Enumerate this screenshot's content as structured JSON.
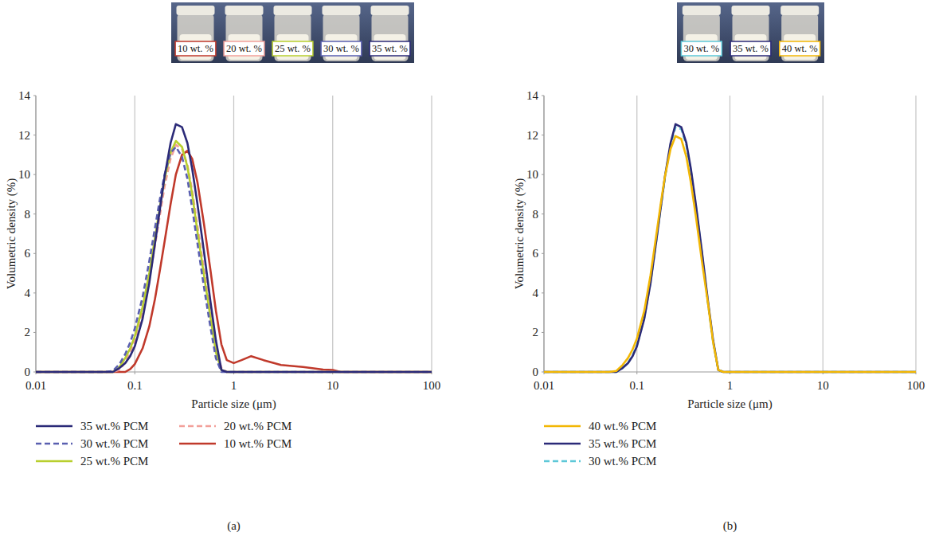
{
  "chart_data": [
    {
      "type": "line",
      "panel_label": "(a)",
      "x_label": "Particle size (μm)",
      "y_label": "Volumetric density (%)",
      "log": "x",
      "grid": true,
      "legend": "bottom",
      "xlim": [
        0.01,
        100
      ],
      "xticks": [
        0.01,
        0.1,
        1,
        10,
        100
      ],
      "ylim": [
        0,
        14
      ],
      "yticks": [
        0,
        2,
        4,
        6,
        8,
        10,
        12,
        14
      ],
      "x": [
        0.01,
        0.05,
        0.06,
        0.07,
        0.08,
        0.09,
        0.1,
        0.12,
        0.14,
        0.16,
        0.18,
        0.2,
        0.23,
        0.26,
        0.3,
        0.34,
        0.38,
        0.43,
        0.5,
        0.58,
        0.66,
        0.75,
        0.85,
        1,
        1.2,
        1.5,
        2,
        3,
        5,
        8,
        10,
        12,
        100
      ],
      "series": [
        {
          "name": "35 wt.% PCM",
          "color": "#2b2a78",
          "line_style": "solid",
          "values": [
            0,
            0,
            0,
            0.2,
            0.44,
            0.81,
            1.3,
            2.7,
            4.5,
            6.5,
            8.3,
            9.9,
            11.6,
            12.55,
            12.4,
            11.6,
            10.3,
            8.5,
            6.1,
            3.6,
            1.6,
            0.1,
            0,
            0,
            0,
            0,
            0,
            0,
            0,
            0,
            0,
            0,
            0
          ]
        },
        {
          "name": "30 wt.% PCM",
          "color": "#5a5fb0",
          "line_style": "dashed",
          "values": [
            0,
            0,
            0.05,
            0.4,
            0.9,
            1.5,
            2.2,
            3.8,
            5.6,
            7.3,
            8.8,
            10,
            11.1,
            11.4,
            10.9,
            9.8,
            8.3,
            6.5,
            4.3,
            2.3,
            0.7,
            0,
            0,
            0,
            0,
            0,
            0,
            0,
            0,
            0,
            0,
            0,
            0
          ]
        },
        {
          "name": "25 wt.% PCM",
          "color": "#b8cf2e",
          "line_style": "solid",
          "values": [
            0,
            0,
            0,
            0.25,
            0.7,
            1.2,
            1.8,
            3.3,
            5,
            6.8,
            8.4,
            9.8,
            11.1,
            11.7,
            11.4,
            10.4,
            9,
            7.1,
            4.9,
            2.8,
            1,
            0.1,
            0,
            0,
            0,
            0,
            0,
            0,
            0,
            0,
            0,
            0,
            0
          ]
        },
        {
          "name": "20 wt.% PCM",
          "color": "#f2a09a",
          "line_style": "dashed",
          "values": [
            0,
            0,
            0,
            0.1,
            0.5,
            1,
            1.6,
            3,
            4.7,
            6.4,
            8,
            9.4,
            10.8,
            11.5,
            11.3,
            10.5,
            9.2,
            7.4,
            5.2,
            3.1,
            1.3,
            0.2,
            0,
            0,
            0,
            0,
            0,
            0,
            0,
            0,
            0,
            0,
            0
          ]
        },
        {
          "name": "10 wt.% PCM",
          "color": "#c0392b",
          "line_style": "solid",
          "values": [
            0,
            0,
            0,
            0,
            0,
            0.15,
            0.4,
            1.2,
            2.3,
            3.7,
            5.2,
            6.6,
            8.5,
            10,
            11,
            11.2,
            10.8,
            9.6,
            7.5,
            5.2,
            3.1,
            1.4,
            0.6,
            0.45,
            0.6,
            0.8,
            0.6,
            0.35,
            0.25,
            0.12,
            0.1,
            0,
            0
          ]
        }
      ],
      "annotations": [
        {
          "text": "10 wt. %",
          "color": "#c0392b"
        },
        {
          "text": "20 wt. %",
          "color": "#f2a09a"
        },
        {
          "text": "25 wt. %",
          "color": "#b8cf2e"
        },
        {
          "text": "30 wt. %",
          "color": "#5a5fb0"
        },
        {
          "text": "35 wt. %",
          "color": "#2b2a78"
        }
      ]
    },
    {
      "type": "line",
      "panel_label": "(b)",
      "x_label": "Particle size (μm)",
      "y_label": "Volumetric density (%)",
      "log": "x",
      "grid": true,
      "legend": "bottom",
      "xlim": [
        0.01,
        100
      ],
      "xticks": [
        0.01,
        0.1,
        1,
        10,
        100
      ],
      "ylim": [
        0,
        14
      ],
      "yticks": [
        0,
        2,
        4,
        6,
        8,
        10,
        12,
        14
      ],
      "x": [
        0.01,
        0.05,
        0.06,
        0.07,
        0.08,
        0.09,
        0.1,
        0.12,
        0.14,
        0.16,
        0.18,
        0.2,
        0.23,
        0.26,
        0.3,
        0.34,
        0.38,
        0.43,
        0.5,
        0.58,
        0.66,
        0.75,
        0.85,
        1,
        1.2,
        1.5,
        2,
        3,
        5,
        8,
        10,
        12,
        100
      ],
      "series": [
        {
          "name": "40 wt.% PCM",
          "color": "#f2b705",
          "line_style": "solid",
          "values": [
            0,
            0,
            0.05,
            0.35,
            0.7,
            1.15,
            1.7,
            3.1,
            4.9,
            6.8,
            8.5,
            9.9,
            11.3,
            11.95,
            11.8,
            10.9,
            9.6,
            7.9,
            5.6,
            3.5,
            1.5,
            0.1,
            0,
            0,
            0,
            0,
            0,
            0,
            0,
            0,
            0,
            0,
            0
          ]
        },
        {
          "name": "35 wt.% PCM",
          "color": "#2b2a78",
          "line_style": "solid",
          "values": [
            0,
            0,
            0,
            0.2,
            0.44,
            0.81,
            1.3,
            2.7,
            4.5,
            6.5,
            8.3,
            9.9,
            11.6,
            12.55,
            12.4,
            11.6,
            10.3,
            8.5,
            6.1,
            3.6,
            1.6,
            0.1,
            0,
            0,
            0,
            0,
            0,
            0,
            0,
            0,
            0,
            0,
            0
          ]
        },
        {
          "name": "30 wt.% PCM",
          "color": "#5ec8d8",
          "line_style": "dashed",
          "values": [
            0,
            0,
            0,
            0.2,
            0.45,
            0.85,
            1.35,
            2.75,
            4.55,
            6.5,
            8.3,
            9.85,
            11.5,
            12.4,
            12.3,
            11.5,
            10.2,
            8.4,
            6,
            3.5,
            1.5,
            0.1,
            0,
            0,
            0,
            0,
            0,
            0,
            0,
            0,
            0,
            0,
            0
          ]
        }
      ],
      "annotations": [
        {
          "text": "30 wt. %",
          "color": "#5ec8d8"
        },
        {
          "text": "35 wt. %",
          "color": "#2b2a78"
        },
        {
          "text": "40 wt. %",
          "color": "#f2b705"
        }
      ]
    }
  ]
}
